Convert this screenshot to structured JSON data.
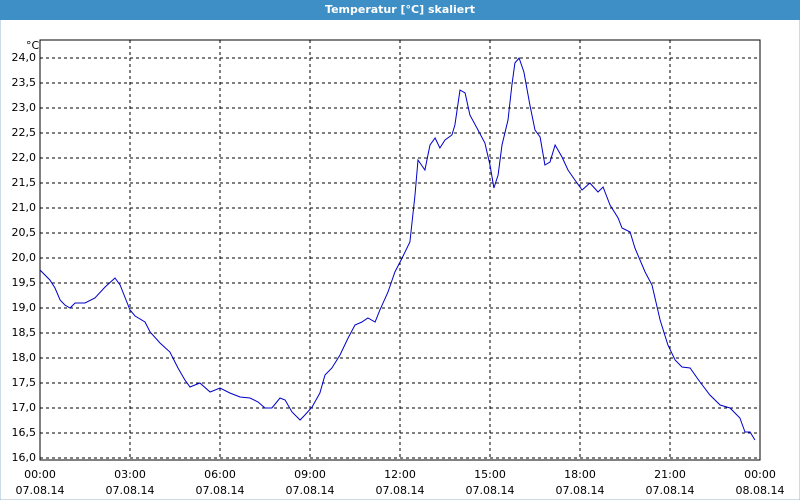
{
  "chart_data": {
    "type": "line",
    "title": "Temperatur [°C] skaliert",
    "y_unit": "°C",
    "xlim": [
      0,
      24
    ],
    "ylim": [
      15.96,
      24.36
    ],
    "grid": true,
    "xticks": [
      {
        "value": 0,
        "label": "00:00",
        "date": "07.08.14"
      },
      {
        "value": 3,
        "label": "03:00",
        "date": "07.08.14"
      },
      {
        "value": 6,
        "label": "06:00",
        "date": "07.08.14"
      },
      {
        "value": 9,
        "label": "09:00",
        "date": "07.08.14"
      },
      {
        "value": 12,
        "label": "12:00",
        "date": "07.08.14"
      },
      {
        "value": 15,
        "label": "15:00",
        "date": "07.08.14"
      },
      {
        "value": 18,
        "label": "18:00",
        "date": "07.08.14"
      },
      {
        "value": 21,
        "label": "21:00",
        "date": "07.08.14"
      },
      {
        "value": 24,
        "label": "00:00",
        "date": "08.08.14"
      }
    ],
    "yticks": [
      {
        "value": 16,
        "label": "16,0"
      },
      {
        "value": 16.5,
        "label": "16,5"
      },
      {
        "value": 17,
        "label": "17,0"
      },
      {
        "value": 17.5,
        "label": "17,5"
      },
      {
        "value": 18,
        "label": "18,0"
      },
      {
        "value": 18.5,
        "label": "18,5"
      },
      {
        "value": 19,
        "label": "19,0"
      },
      {
        "value": 19.5,
        "label": "19,5"
      },
      {
        "value": 20,
        "label": "20,0"
      },
      {
        "value": 20.5,
        "label": "20,5"
      },
      {
        "value": 21,
        "label": "21,0"
      },
      {
        "value": 21.5,
        "label": "21,5"
      },
      {
        "value": 22,
        "label": "22,0"
      },
      {
        "value": 22.5,
        "label": "22,5"
      },
      {
        "value": 23,
        "label": "23,0"
      },
      {
        "value": 23.5,
        "label": "23,5"
      },
      {
        "value": 24,
        "label": "24,0"
      }
    ],
    "series": [
      {
        "color": "#0000c8",
        "x": [
          0,
          0.33,
          0.5,
          0.67,
          0.83,
          1,
          1.17,
          1.5,
          1.83,
          2.17,
          2.5,
          2.67,
          3,
          3.17,
          3.5,
          3.67,
          4,
          4.33,
          4.6,
          4.83,
          5,
          5.33,
          5.67,
          6,
          6.33,
          6.67,
          7,
          7.27,
          7.5,
          7.73,
          8,
          8.17,
          8.4,
          8.67,
          8.83,
          9.07,
          9.33,
          9.5,
          9.73,
          10,
          10.27,
          10.5,
          10.73,
          10.93,
          11.17,
          11.33,
          11.6,
          11.83,
          12.07,
          12.33,
          12.5,
          12.6,
          12.83,
          13,
          13.17,
          13.33,
          13.5,
          13.73,
          13.83,
          14,
          14.17,
          14.33,
          14.6,
          14.83,
          15,
          15.13,
          15.27,
          15.4,
          15.6,
          15.73,
          15.83,
          15.97,
          16.13,
          16.33,
          16.5,
          16.67,
          16.83,
          17,
          17.17,
          17.4,
          17.6,
          17.83,
          18.07,
          18.33,
          18.6,
          18.77,
          19,
          19.27,
          19.4,
          19.67,
          19.83,
          20.17,
          20.4,
          20.67,
          20.93,
          21.17,
          21.4,
          21.67,
          22,
          22.33,
          22.67,
          23,
          23.33,
          23.5,
          23.67,
          23.83
        ],
        "values": [
          19.76,
          19.56,
          19.4,
          19.16,
          19.06,
          19.0,
          19.1,
          19.1,
          19.2,
          19.42,
          19.6,
          19.46,
          18.96,
          18.84,
          18.72,
          18.52,
          18.3,
          18.12,
          17.8,
          17.56,
          17.42,
          17.5,
          17.32,
          17.4,
          17.3,
          17.22,
          17.2,
          17.12,
          17.0,
          17.0,
          17.2,
          17.16,
          16.92,
          16.76,
          16.86,
          17.02,
          17.3,
          17.66,
          17.8,
          18.06,
          18.4,
          18.66,
          18.72,
          18.8,
          18.72,
          18.96,
          19.32,
          19.72,
          20.0,
          20.32,
          21.26,
          21.96,
          21.76,
          22.26,
          22.4,
          22.2,
          22.36,
          22.46,
          22.66,
          23.36,
          23.3,
          22.86,
          22.56,
          22.3,
          21.86,
          21.4,
          21.66,
          22.26,
          22.76,
          23.46,
          23.9,
          24.0,
          23.72,
          23.06,
          22.56,
          22.42,
          21.86,
          21.92,
          22.26,
          22.02,
          21.76,
          21.56,
          21.36,
          21.5,
          21.32,
          21.42,
          21.06,
          20.8,
          20.6,
          20.52,
          20.2,
          19.72,
          19.46,
          18.76,
          18.26,
          17.96,
          17.82,
          17.8,
          17.52,
          17.26,
          17.06,
          17.0,
          16.8,
          16.52,
          16.52,
          16.36
        ]
      }
    ]
  }
}
